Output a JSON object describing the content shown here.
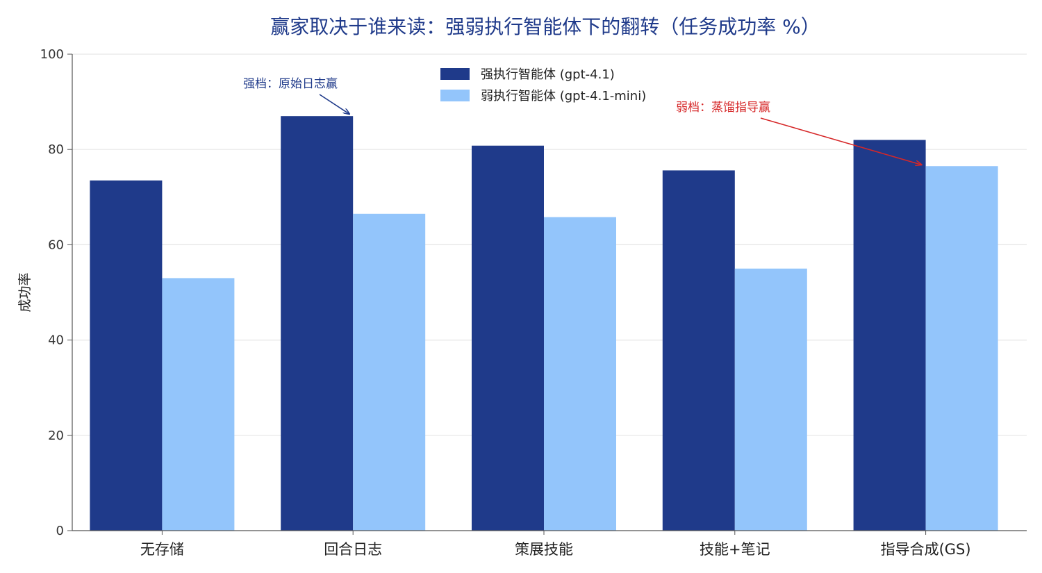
{
  "chart_data": {
    "type": "bar",
    "title": "赢家取决于谁来读：强弱执行智能体下的翻转（任务成功率 %）",
    "xlabel": "",
    "ylabel": "成功率",
    "ylim": [
      0,
      100
    ],
    "yticks": [
      0,
      20,
      40,
      60,
      80,
      100
    ],
    "grid": true,
    "legend_position": "top-center",
    "categories": [
      "无存储",
      "回合日志",
      "策展技能",
      "技能+笔记",
      "指导合成(GS)"
    ],
    "series": [
      {
        "name": "强执行智能体 (gpt-4.1)",
        "color": "#1f3a8a",
        "values": [
          73.5,
          87.0,
          80.8,
          75.6,
          82.0
        ]
      },
      {
        "name": "弱执行智能体 (gpt-4.1-mini)",
        "color": "#93c5fb",
        "values": [
          53.0,
          66.5,
          65.8,
          55.0,
          76.5
        ]
      }
    ],
    "annotations": [
      {
        "text": "强档：原始日志赢",
        "color": "#1f3a8a",
        "target_category": "回合日志",
        "target_series": 0
      },
      {
        "text": "弱档：蒸馏指导赢",
        "color": "#d62728",
        "target_category": "指导合成(GS)",
        "target_series": 1
      }
    ]
  }
}
